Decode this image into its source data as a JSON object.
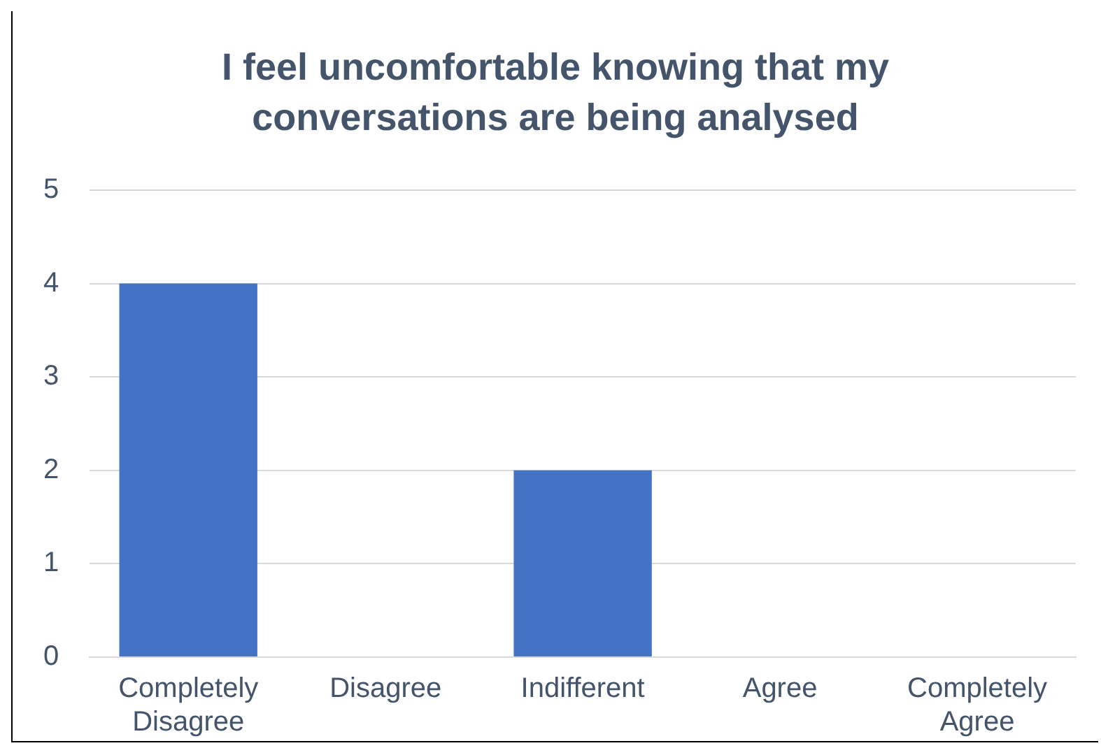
{
  "chart_data": {
    "type": "bar",
    "title": "I feel uncomfortable knowing that my conversations are being analysed",
    "categories": [
      "Completely Disagree",
      "Disagree",
      "Indifferent",
      "Agree",
      "Completely Agree"
    ],
    "values": [
      4,
      0,
      2,
      0,
      0
    ],
    "color": "#4472c4",
    "ylim": [
      0,
      5
    ],
    "yticks": [
      0,
      1,
      2,
      3,
      4,
      5
    ],
    "grid": "y"
  }
}
